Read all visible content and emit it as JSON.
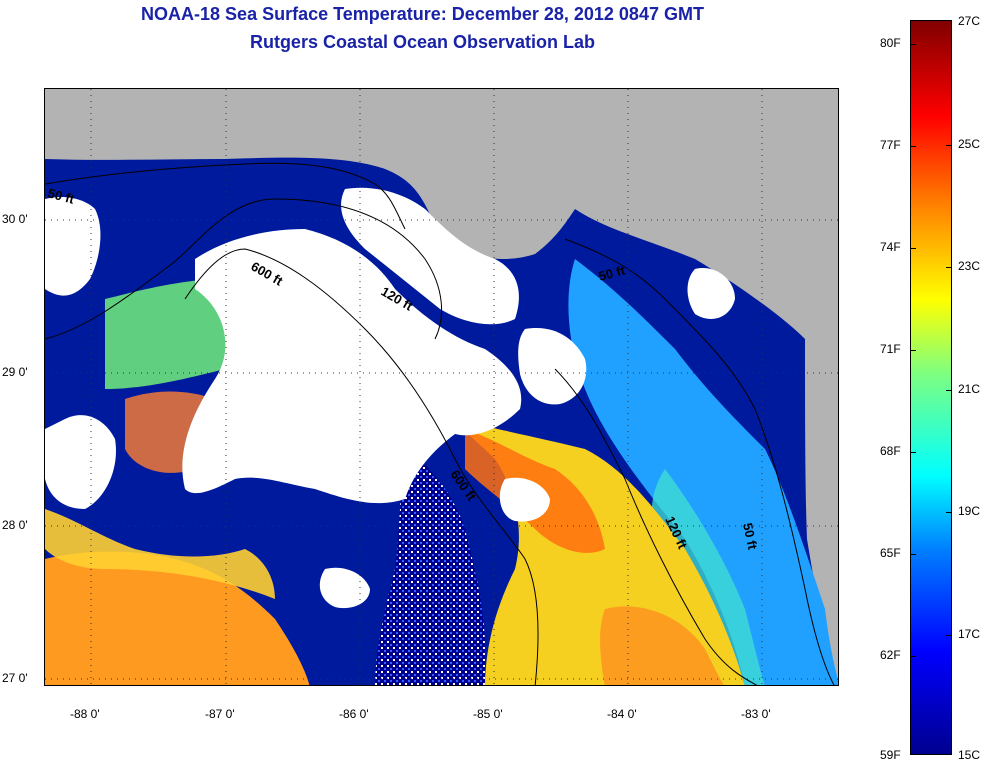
{
  "title": {
    "line1": "NOAA-18 Sea Surface Temperature:  December 28, 2012 0847 GMT",
    "line2": "Rutgers Coastal Ocean Observation Lab"
  },
  "colors": {
    "title": "#1a23a8",
    "land": "#b3b3b3",
    "clouds": "#ffffff",
    "cold": "#00008f",
    "warm": "#ff0000"
  },
  "map": {
    "lat_labels": [
      "30 0'",
      "29 0'",
      "28 0'",
      "27 0'"
    ],
    "lon_labels": [
      "-88 0'",
      "-87 0'",
      "-86 0'",
      "-85 0'",
      "-84 0'",
      "-83 0'"
    ],
    "lat_range": [
      26.98,
      30.87
    ],
    "lon_range": [
      -88.33,
      -82.42
    ],
    "isobaths": [
      {
        "label": "50 ft",
        "labels_drawn": [
          "50 ft",
          "50 ft",
          "50 ft"
        ]
      },
      {
        "label": "120 ft",
        "labels_drawn": [
          "120 ft",
          "120 ft"
        ]
      },
      {
        "label": "600 ft",
        "labels_drawn": [
          "600 ft",
          "600 ft"
        ]
      }
    ]
  },
  "colorbar": {
    "fahrenheit": [
      "80F",
      "77F",
      "74F",
      "71F",
      "68F",
      "65F",
      "62F",
      "59F"
    ],
    "celsius": [
      "27C",
      "25C",
      "23C",
      "21C",
      "19C",
      "17C",
      "15C"
    ],
    "range_c": [
      15,
      27
    ],
    "range_f": [
      59,
      80.6
    ]
  }
}
